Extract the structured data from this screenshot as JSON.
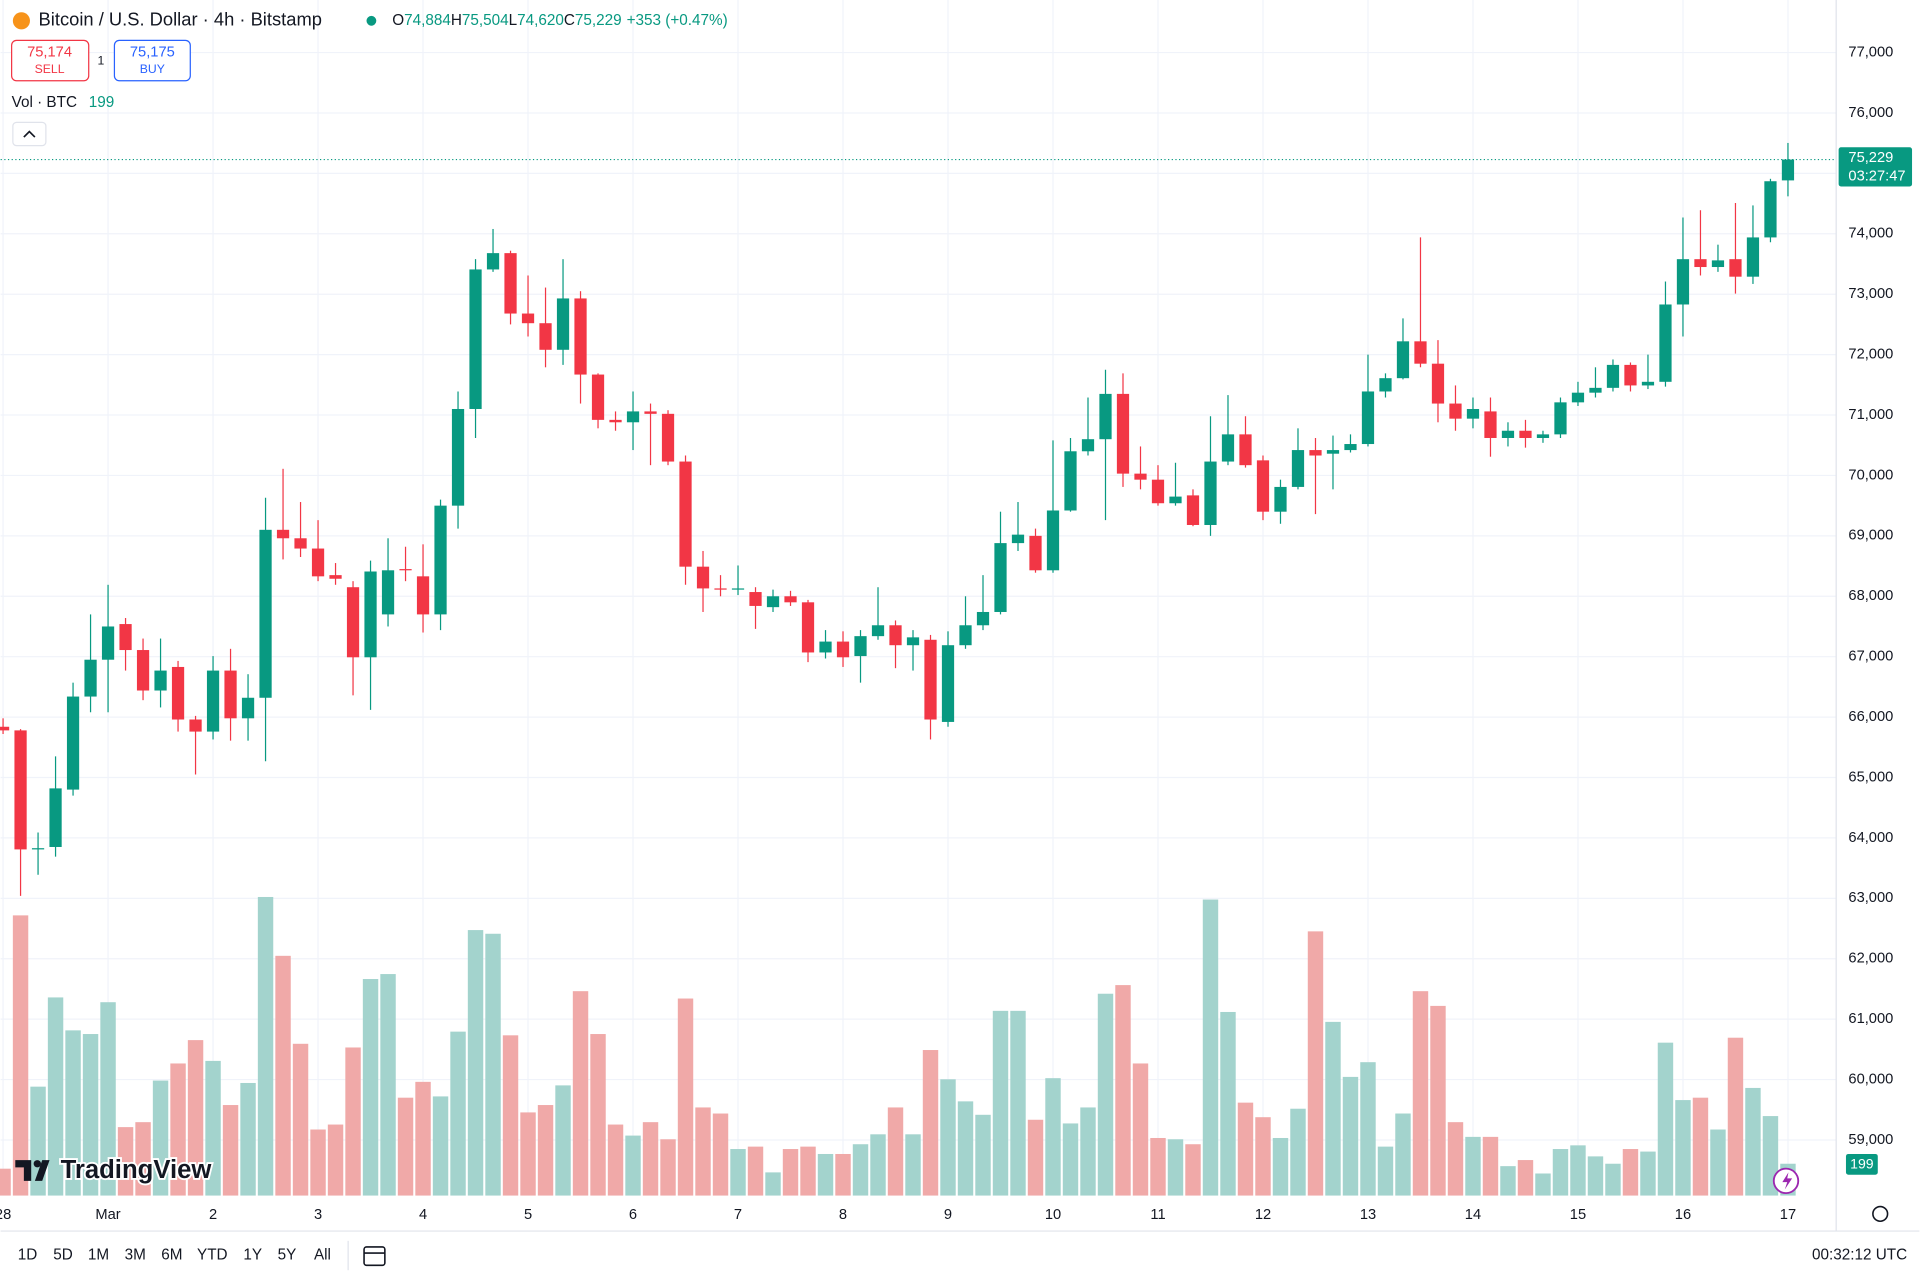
{
  "header": {
    "title": "Bitcoin / U.S. Dollar · 4h · Bitstamp",
    "ohlc": [
      {
        "label": "O",
        "value": "74,884"
      },
      {
        "label": "H",
        "value": "75,504"
      },
      {
        "label": "L",
        "value": "74,620"
      },
      {
        "label": "C",
        "value": "75,229"
      }
    ],
    "change": "+353 (+0.47%)"
  },
  "trade": {
    "sell_price": "75,174",
    "sell": "SELL",
    "qty": "1",
    "buy_price": "75,175",
    "buy": "BUY"
  },
  "volume_legend": {
    "label": "Vol · BTC",
    "value": "199"
  },
  "price_label": {
    "price": "75,229",
    "countdown": "03:27:47"
  },
  "volume_label": "199",
  "logo": "TradingView",
  "timeframes": [
    "1D",
    "5D",
    "1M",
    "3M",
    "6M",
    "YTD",
    "1Y",
    "5Y",
    "All"
  ],
  "clock": "00:32:12 UTC",
  "chart_data": {
    "type": "candlestick",
    "categories": [
      "28",
      null,
      null,
      null,
      null,
      null,
      "Mar",
      null,
      null,
      null,
      null,
      null,
      "2",
      null,
      null,
      null,
      null,
      null,
      "3",
      null,
      null,
      null,
      null,
      null,
      "4",
      null,
      null,
      null,
      null,
      null,
      "5",
      null,
      null,
      null,
      null,
      null,
      "6",
      null,
      null,
      null,
      null,
      null,
      "7",
      null,
      null,
      null,
      null,
      null,
      "8",
      null,
      null,
      null,
      null,
      null,
      "9",
      null,
      null,
      null,
      null,
      null,
      "10",
      null,
      null,
      null,
      null,
      null,
      "11",
      null,
      null,
      null,
      null,
      null,
      "12",
      null,
      null,
      null,
      null,
      null,
      "13",
      null,
      null,
      null,
      null,
      null,
      "14",
      null,
      null,
      null,
      null,
      null,
      "15",
      null,
      null,
      null,
      null,
      null,
      "16",
      null,
      null,
      null,
      null,
      null,
      "17"
    ],
    "open": [
      65840,
      65780,
      63810,
      63850,
      64800,
      66340,
      66950,
      67540,
      67110,
      66440,
      66830,
      65960,
      65760,
      66770,
      65980,
      66320,
      69100,
      68960,
      68790,
      68350,
      68150,
      66990,
      67700,
      68450,
      68330,
      67700,
      69500,
      71100,
      73410,
      73680,
      72680,
      72520,
      72080,
      72930,
      71670,
      70920,
      70880,
      71060,
      71020,
      70230,
      68490,
      68130,
      68110,
      68070,
      67820,
      68000,
      67900,
      67070,
      67250,
      67010,
      67340,
      67520,
      67190,
      67280,
      65920,
      67190,
      67520,
      67740,
      68880,
      69000,
      68430,
      69420,
      70400,
      70600,
      71350,
      70030,
      69930,
      69540,
      69670,
      69180,
      70230,
      70680,
      70250,
      69400,
      69810,
      70420,
      70360,
      70420,
      70520,
      71390,
      71610,
      72220,
      71850,
      71190,
      70940,
      71060,
      70620,
      70740,
      70620,
      70680,
      71210,
      71370,
      71450,
      71830,
      71490,
      71550,
      72830,
      73580,
      73450,
      73580,
      73290,
      73940,
      74884
    ],
    "high": [
      65980,
      65800,
      64090,
      65350,
      66570,
      67700,
      68190,
      67640,
      67300,
      67300,
      66930,
      66020,
      67010,
      67130,
      66710,
      69630,
      70110,
      69560,
      69260,
      68550,
      68250,
      68590,
      68960,
      68820,
      68860,
      69600,
      71390,
      73580,
      74080,
      73720,
      73310,
      73110,
      73580,
      73050,
      71690,
      71060,
      71390,
      71190,
      71080,
      70330,
      68750,
      68350,
      68510,
      68150,
      68110,
      68090,
      67940,
      67440,
      67420,
      67440,
      68150,
      67600,
      67440,
      67360,
      67420,
      68000,
      68350,
      69400,
      69560,
      69120,
      70580,
      70620,
      71290,
      71750,
      71690,
      70480,
      70170,
      70210,
      69770,
      70980,
      71330,
      70980,
      70330,
      69930,
      70780,
      70620,
      70660,
      70680,
      72000,
      71690,
      72600,
      73940,
      72240,
      71490,
      71290,
      71290,
      70880,
      70920,
      70740,
      71290,
      71550,
      71790,
      71920,
      71870,
      72000,
      73210,
      74270,
      74390,
      73820,
      74510,
      74470,
      74910,
      75504
    ],
    "low": [
      65720,
      63040,
      63390,
      63690,
      64700,
      66080,
      66080,
      66770,
      66280,
      66160,
      65760,
      65050,
      65630,
      65610,
      65610,
      65270,
      68610,
      68650,
      68250,
      68190,
      66360,
      66120,
      67500,
      68250,
      67400,
      67440,
      69120,
      70620,
      73370,
      72500,
      72300,
      71790,
      71830,
      71190,
      70780,
      70740,
      70420,
      70170,
      70170,
      68190,
      67740,
      68000,
      68020,
      67460,
      67740,
      67840,
      66910,
      66970,
      66830,
      66570,
      67280,
      66810,
      66770,
      65630,
      65840,
      67130,
      67440,
      67700,
      68750,
      68390,
      68390,
      69400,
      70330,
      69260,
      69810,
      69770,
      69500,
      69500,
      69160,
      69000,
      70170,
      70130,
      69260,
      69200,
      69770,
      69360,
      69770,
      70380,
      70480,
      71290,
      71590,
      71790,
      70880,
      70740,
      70780,
      70310,
      70480,
      70460,
      70540,
      70620,
      71150,
      71290,
      71390,
      71390,
      71430,
      71470,
      72300,
      73310,
      73370,
      73010,
      73170,
      73860,
      74620
    ],
    "close": [
      65780,
      63810,
      63830,
      64820,
      66340,
      66950,
      67500,
      67110,
      66440,
      66770,
      65960,
      65760,
      66770,
      65980,
      66320,
      69100,
      68960,
      68790,
      68330,
      68290,
      66990,
      68410,
      68430,
      68430,
      67700,
      69500,
      71100,
      73410,
      73680,
      72680,
      72520,
      72080,
      72930,
      71670,
      70920,
      70880,
      71060,
      71020,
      70230,
      68490,
      68130,
      68110,
      68130,
      67840,
      68000,
      67900,
      67070,
      67250,
      66990,
      67340,
      67520,
      67190,
      67320,
      65960,
      67190,
      67520,
      67740,
      68880,
      69020,
      68430,
      69420,
      70400,
      70600,
      71350,
      70030,
      69930,
      69540,
      69650,
      69180,
      70230,
      70680,
      70170,
      69400,
      69810,
      70420,
      70330,
      70420,
      70520,
      71390,
      71610,
      72220,
      71850,
      71190,
      70940,
      71100,
      70620,
      70740,
      70620,
      70680,
      71210,
      71370,
      71450,
      71830,
      71490,
      71550,
      72830,
      73580,
      73450,
      73560,
      73290,
      73940,
      74870,
      75229
    ],
    "volume": [
      168,
      1752,
      681,
      1239,
      1033,
      1010,
      1209,
      428,
      459,
      719,
      826,
      972,
      842,
      566,
      704,
      1867,
      1499,
      949,
      413,
      444,
      926,
      1354,
      1385,
      612,
      711,
      620,
      1025,
      1660,
      1637,
      1002,
      520,
      566,
      689,
      1278,
      1010,
      444,
      375,
      459,
      352,
      1232,
      551,
      513,
      291,
      306,
      145,
      291,
      306,
      260,
      260,
      321,
      383,
      551,
      383,
      910,
      727,
      589,
      505,
      1155,
      1155,
      474,
      734,
      451,
      551,
      1262,
      1316,
      826,
      360,
      352,
      321,
      1851,
      1148,
      581,
      490,
      360,
      543,
      1652,
      1086,
      742,
      834,
      306,
      513,
      1278,
      1186,
      459,
      367,
      367,
      184,
      222,
      138,
      291,
      314,
      245,
      199,
      291,
      275,
      956,
      597,
      612,
      413,
      987,
      673,
      497,
      199
    ],
    "up_color": "#089981",
    "down_color": "#f23645",
    "volume_up_color": "#a3d3cd",
    "volume_down_color": "#f0a9a8",
    "ylim": [
      58080,
      77870
    ],
    "yticks": [
      {
        "value": 59000,
        "label": "59,000"
      },
      {
        "value": 60000,
        "label": "60,000"
      },
      {
        "value": 61000,
        "label": "61,000"
      },
      {
        "value": 62000,
        "label": "62,000"
      },
      {
        "value": 63000,
        "label": "63,000"
      },
      {
        "value": 64000,
        "label": "64,000"
      },
      {
        "value": 65000,
        "label": "65,000"
      },
      {
        "value": 66000,
        "label": "66,000"
      },
      {
        "value": 67000,
        "label": "67,000"
      },
      {
        "value": 68000,
        "label": "68,000"
      },
      {
        "value": 69000,
        "label": "69,000"
      },
      {
        "value": 70000,
        "label": "70,000"
      },
      {
        "value": 71000,
        "label": "71,000"
      },
      {
        "value": 72000,
        "label": "72,000"
      },
      {
        "value": 73000,
        "label": "73,000"
      },
      {
        "value": 74000,
        "label": "74,000"
      },
      {
        "value": 75000,
        "label": "75,000"
      },
      {
        "value": 76000,
        "label": "76,000"
      },
      {
        "value": 77000,
        "label": "77,000"
      }
    ],
    "grid": true
  }
}
